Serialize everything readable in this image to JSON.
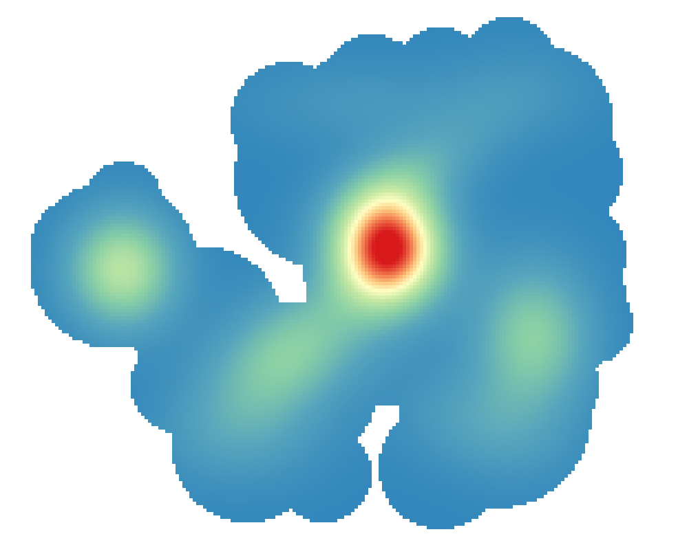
{
  "map": {
    "type": "kernel-density-heatmap",
    "color_ramp": {
      "name": "spectral-reversed",
      "stops": [
        {
          "value": 0.0,
          "color": "#3286bc"
        },
        {
          "value": 0.22,
          "color": "#57a6bd"
        },
        {
          "value": 0.42,
          "color": "#8bd0a5"
        },
        {
          "value": 0.58,
          "color": "#c5e8a3"
        },
        {
          "value": 0.7,
          "color": "#fffec2"
        },
        {
          "value": 0.8,
          "color": "#fdc980"
        },
        {
          "value": 0.9,
          "color": "#f0724a"
        },
        {
          "value": 1.0,
          "color": "#d7191c"
        }
      ]
    },
    "background_color": "#ffffff",
    "hotspots": [
      {
        "name": "central-peak",
        "intensity": 1.0
      },
      {
        "name": "west-cluster",
        "intensity": 0.5
      },
      {
        "name": "south-central-cluster",
        "intensity": 0.45
      },
      {
        "name": "east-cluster",
        "intensity": 0.42
      },
      {
        "name": "north-ridge",
        "intensity": 0.3
      }
    ]
  }
}
